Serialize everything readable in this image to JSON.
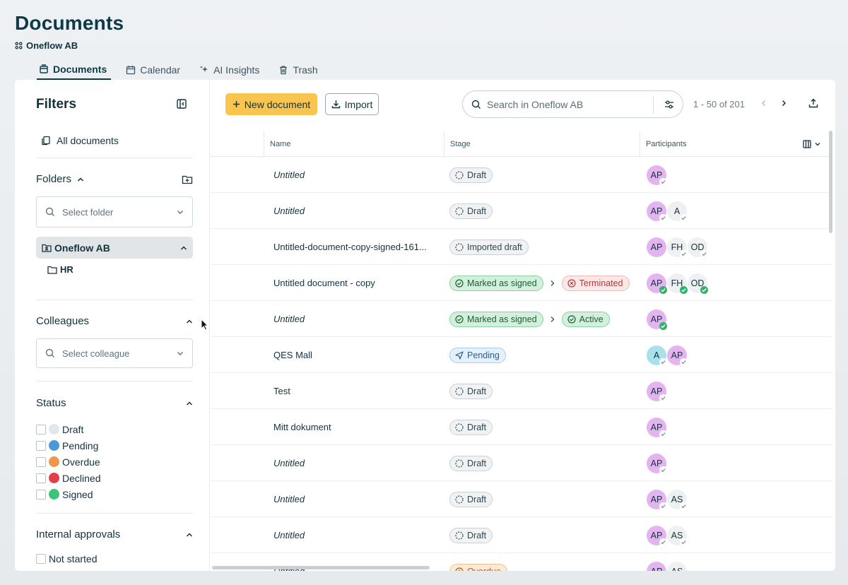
{
  "header": {
    "title": "Documents",
    "org": "Oneflow AB"
  },
  "tabs": [
    {
      "label": "Documents",
      "icon": "documents-icon",
      "active": true
    },
    {
      "label": "Calendar",
      "icon": "calendar-icon"
    },
    {
      "label": "AI Insights",
      "icon": "sparkle-icon"
    },
    {
      "label": "Trash",
      "icon": "trash-icon"
    }
  ],
  "sidebar": {
    "title": "Filters",
    "all_documents": "All documents",
    "folders": {
      "label": "Folders",
      "placeholder": "Select folder",
      "selected": "Oneflow AB",
      "children": [
        "HR"
      ]
    },
    "colleagues": {
      "label": "Colleagues",
      "placeholder": "Select colleague"
    },
    "status": {
      "label": "Status",
      "items": [
        {
          "label": "Draft",
          "color": "#e4e7e9"
        },
        {
          "label": "Pending",
          "color": "#4a98d8"
        },
        {
          "label": "Overdue",
          "color": "#f0964a"
        },
        {
          "label": "Declined",
          "color": "#e0404a"
        },
        {
          "label": "Signed",
          "color": "#3cc47a"
        }
      ]
    },
    "internal_approvals": {
      "label": "Internal approvals",
      "items": [
        "Not started"
      ]
    }
  },
  "toolbar": {
    "new_document": "New document",
    "import": "Import",
    "search_placeholder": "Search in Oneflow AB",
    "pager": "1 - 50 of 201"
  },
  "table": {
    "columns": [
      "Name",
      "Stage",
      "Participants"
    ],
    "rows": [
      {
        "name": "Untitled",
        "italic": true,
        "stages": [
          {
            "type": "draft",
            "label": "Draft"
          }
        ],
        "participants": [
          {
            "initials": "AP",
            "color": "pink",
            "status": "grey"
          }
        ]
      },
      {
        "name": "Untitled",
        "italic": true,
        "stages": [
          {
            "type": "draft",
            "label": "Draft"
          }
        ],
        "participants": [
          {
            "initials": "AP",
            "color": "pink",
            "status": "grey"
          },
          {
            "initials": "A",
            "color": "grey",
            "status": "grey"
          }
        ]
      },
      {
        "name": "Untitled-document-copy-signed-161...",
        "italic": false,
        "stages": [
          {
            "type": "draft",
            "label": "Imported draft"
          }
        ],
        "participants": [
          {
            "initials": "AP",
            "color": "pink",
            "status": "none"
          },
          {
            "initials": "FH",
            "color": "grey",
            "status": "grey"
          },
          {
            "initials": "OD",
            "color": "grey",
            "status": "grey"
          }
        ]
      },
      {
        "name": "Untitled document - copy",
        "italic": false,
        "stages": [
          {
            "type": "signed",
            "label": "Marked as signed"
          },
          {
            "type": "term",
            "label": "Terminated"
          }
        ],
        "participants": [
          {
            "initials": "AP",
            "color": "pink",
            "status": "green"
          },
          {
            "initials": "FH",
            "color": "grey",
            "status": "green"
          },
          {
            "initials": "OD",
            "color": "grey",
            "status": "green"
          }
        ]
      },
      {
        "name": "Untitled",
        "italic": true,
        "stages": [
          {
            "type": "signed",
            "label": "Marked as signed"
          },
          {
            "type": "active",
            "label": "Active"
          }
        ],
        "participants": [
          {
            "initials": "AP",
            "color": "pink",
            "status": "green"
          }
        ]
      },
      {
        "name": "QES Mall",
        "italic": false,
        "stages": [
          {
            "type": "pending",
            "label": "Pending"
          }
        ],
        "participants": [
          {
            "initials": "A",
            "color": "teal",
            "status": "grey"
          },
          {
            "initials": "AP",
            "color": "pink",
            "status": "grey"
          }
        ]
      },
      {
        "name": "Test",
        "italic": false,
        "stages": [
          {
            "type": "draft",
            "label": "Draft"
          }
        ],
        "participants": [
          {
            "initials": "AP",
            "color": "pink",
            "status": "grey"
          }
        ]
      },
      {
        "name": "Mitt dokument",
        "italic": false,
        "stages": [
          {
            "type": "draft",
            "label": "Draft"
          }
        ],
        "participants": [
          {
            "initials": "AP",
            "color": "pink",
            "status": "grey"
          }
        ]
      },
      {
        "name": "Untitled",
        "italic": true,
        "stages": [
          {
            "type": "draft",
            "label": "Draft"
          }
        ],
        "participants": [
          {
            "initials": "AP",
            "color": "pink",
            "status": "grey"
          }
        ]
      },
      {
        "name": "Untitled",
        "italic": true,
        "stages": [
          {
            "type": "draft",
            "label": "Draft"
          }
        ],
        "participants": [
          {
            "initials": "AP",
            "color": "pink",
            "status": "grey"
          },
          {
            "initials": "AS",
            "color": "grey",
            "status": "grey"
          }
        ]
      },
      {
        "name": "Untitled",
        "italic": true,
        "stages": [
          {
            "type": "draft",
            "label": "Draft"
          }
        ],
        "participants": [
          {
            "initials": "AP",
            "color": "pink",
            "status": "grey"
          },
          {
            "initials": "AS",
            "color": "grey",
            "status": "grey"
          }
        ]
      },
      {
        "name": "Untitled",
        "italic": true,
        "stages": [
          {
            "type": "overdue",
            "label": "Overdue"
          }
        ],
        "participants": [
          {
            "initials": "AP",
            "color": "pink",
            "status": "none"
          },
          {
            "initials": "AS",
            "color": "grey",
            "status": "none"
          }
        ]
      }
    ]
  }
}
